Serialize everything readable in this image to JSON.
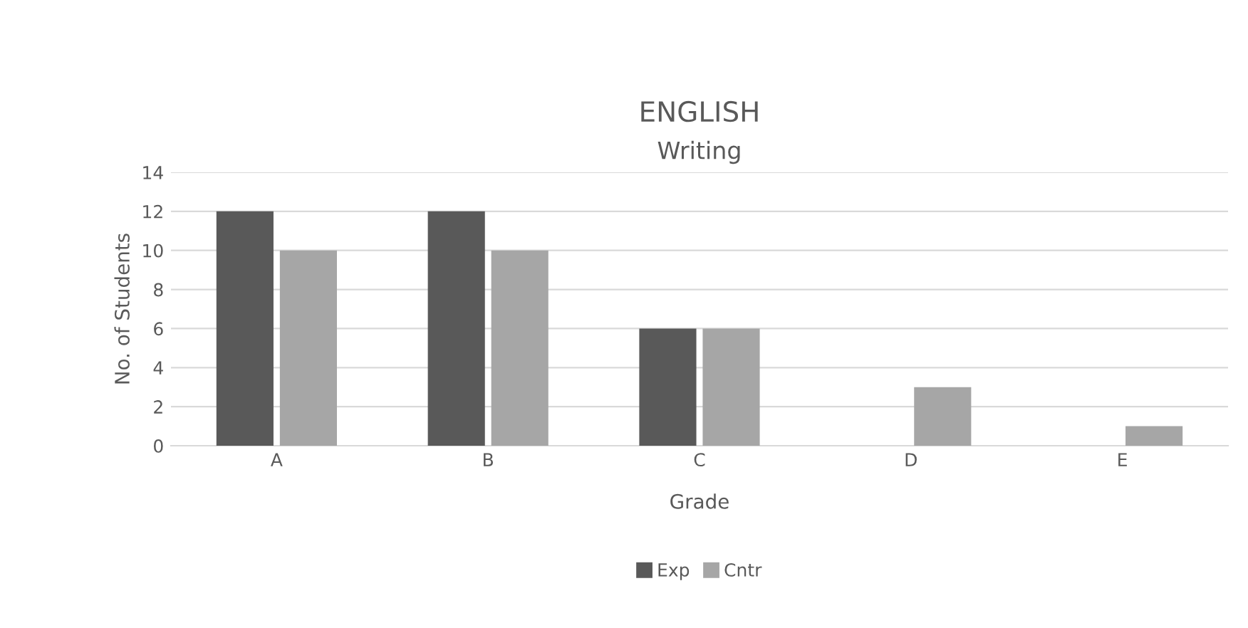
{
  "chart_data": {
    "type": "bar",
    "title": "ENGLISH",
    "subtitle": "Writing",
    "xlabel": "Grade",
    "ylabel": "No. of Students",
    "categories": [
      "A",
      "B",
      "C",
      "D",
      "E"
    ],
    "series": [
      {
        "name": "Exp",
        "color": "#595959",
        "values": [
          12,
          12,
          6,
          0,
          0
        ]
      },
      {
        "name": "Cntr",
        "color": "#a6a6a6",
        "values": [
          10,
          10,
          6,
          3,
          1
        ]
      }
    ],
    "ylim": [
      0,
      14
    ],
    "yticks": [
      0,
      2,
      4,
      6,
      8,
      10,
      12,
      14
    ],
    "grid": "y",
    "legend": "bottom"
  }
}
